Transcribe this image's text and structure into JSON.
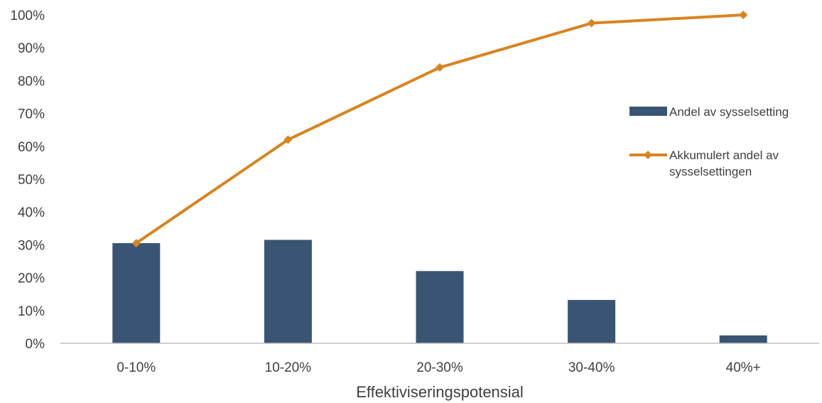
{
  "chart_data": {
    "type": "bar",
    "categories": [
      "0-10%",
      "10-20%",
      "20-30%",
      "30-40%",
      "40%+"
    ],
    "series": [
      {
        "name": "Andel av sysselsetting",
        "type": "bar",
        "color": "#3a5573",
        "values": [
          30.5,
          31.5,
          22,
          13.2,
          2.4
        ]
      },
      {
        "name": "Akkumulert andel av sysselsettingen",
        "name_lines": [
          "Akkumulert andel av",
          "sysselsettingen"
        ],
        "type": "line",
        "marker": "diamond",
        "color": "#d8841f",
        "values": [
          30.5,
          62,
          84,
          97.5,
          100
        ]
      }
    ],
    "xlabel": "Effektiviseringspotensial",
    "ylabel": "",
    "ylim": [
      0,
      100
    ],
    "yticks": [
      0,
      10,
      20,
      30,
      40,
      50,
      60,
      70,
      80,
      90,
      100
    ],
    "ytick_labels": [
      "0%",
      "10%",
      "20%",
      "30%",
      "40%",
      "50%",
      "60%",
      "70%",
      "80%",
      "90%",
      "100%"
    ],
    "grid": false,
    "legend_position": "right"
  }
}
